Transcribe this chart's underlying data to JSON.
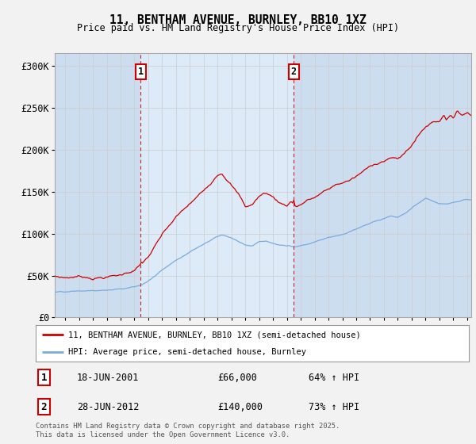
{
  "title": "11, BENTHAM AVENUE, BURNLEY, BB10 1XZ",
  "subtitle": "Price paid vs. HM Land Registry's House Price Index (HPI)",
  "background_color": "#ccddf0",
  "highlight_color": "#ddeaf8",
  "figure_bg": "#f2f2f2",
  "ylabel_ticks": [
    "£0",
    "£50K",
    "£100K",
    "£150K",
    "£200K",
    "£250K",
    "£300K"
  ],
  "ytick_vals": [
    0,
    50000,
    100000,
    150000,
    200000,
    250000,
    300000
  ],
  "ylim": [
    0,
    315000
  ],
  "xlim_start": 1995.25,
  "xlim_end": 2025.3,
  "sale1_date": 2001.46,
  "sale1_price": 66000,
  "sale1_label": "1",
  "sale2_date": 2012.49,
  "sale2_price": 140000,
  "sale2_label": "2",
  "legend_line1": "11, BENTHAM AVENUE, BURNLEY, BB10 1XZ (semi-detached house)",
  "legend_line2": "HPI: Average price, semi-detached house, Burnley",
  "footer": "Contains HM Land Registry data © Crown copyright and database right 2025.\nThis data is licensed under the Open Government Licence v3.0.",
  "red_color": "#cc0000",
  "blue_color": "#7aabdc",
  "vline_color": "#cc0000",
  "grid_color": "#cccccc",
  "white": "#ffffff"
}
